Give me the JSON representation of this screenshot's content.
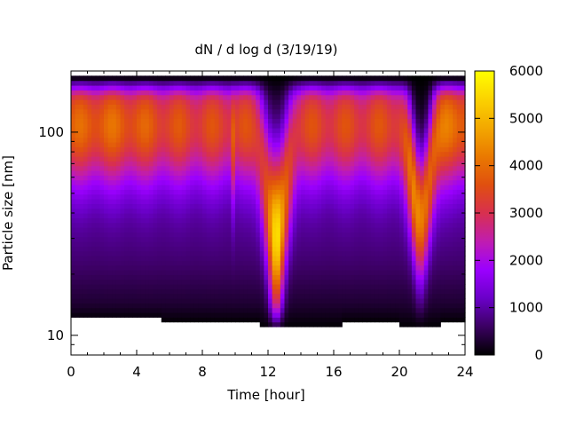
{
  "chart_data": {
    "type": "heatmap",
    "title": "dN / d log d (3/19/19)",
    "xlabel": "Time [hour]",
    "ylabel": "Particle size [nm]",
    "x_ticks": [
      0,
      4,
      8,
      12,
      16,
      20,
      24
    ],
    "x_tick_labels": [
      "0",
      "4",
      "8",
      "12",
      "16",
      "20",
      "24"
    ],
    "xlim": [
      0,
      24
    ],
    "y_scale": "log",
    "ylim": [
      8,
      200
    ],
    "y_ticks": [
      10,
      100
    ],
    "y_tick_labels": [
      "10",
      "100"
    ],
    "colorbar": {
      "range": [
        0,
        6000
      ],
      "ticks": [
        0,
        1000,
        2000,
        3000,
        4000,
        5000,
        6000
      ],
      "tick_labels": [
        "0",
        "1000",
        "2000",
        "3000",
        "4000",
        "5000",
        "6000"
      ],
      "palette": [
        "#000000",
        "#3b0062",
        "#6a00c8",
        "#9b00ff",
        "#c01db0",
        "#d8304f",
        "#e0500f",
        "#ea7a00",
        "#f3a800",
        "#fbd200",
        "#ffff00"
      ]
    },
    "field_description": {
      "peak_size_nm": 110,
      "peak_value": 4200,
      "features": [
        {
          "time_hour": 12.5,
          "min_size_nm": 14,
          "max_value": 5200
        },
        {
          "time_hour": 21.3,
          "min_size_nm": 17,
          "max_value": 4200
        }
      ]
    },
    "grid": false,
    "legend": "colorbar-right"
  }
}
